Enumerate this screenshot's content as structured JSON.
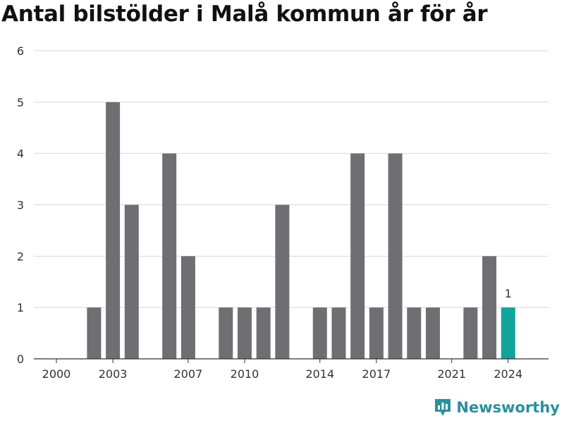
{
  "title": "Antal bilstölder i Malå kommun år för år",
  "brand": {
    "name": "Newsworthy",
    "icon": "bar-chart-logo-icon"
  },
  "colors": {
    "bar": "#6f6f73",
    "highlight": "#12a39a",
    "grid": "#d8d8d8",
    "axis": "#333333",
    "brand": "#2c8f9c"
  },
  "chart_data": {
    "type": "bar",
    "categories": [
      "2000",
      "2001",
      "2002",
      "2003",
      "2004",
      "2005",
      "2006",
      "2007",
      "2008",
      "2009",
      "2010",
      "2011",
      "2012",
      "2013",
      "2014",
      "2015",
      "2016",
      "2017",
      "2018",
      "2019",
      "2020",
      "2021",
      "2022",
      "2023",
      "2024"
    ],
    "values": [
      0,
      0,
      1,
      5,
      3,
      0,
      4,
      2,
      0,
      1,
      1,
      1,
      3,
      0,
      1,
      1,
      4,
      1,
      4,
      1,
      1,
      0,
      1,
      2,
      1
    ],
    "x_tick_labels": [
      "2000",
      "2003",
      "2007",
      "2010",
      "2014",
      "2017",
      "2021",
      "2024"
    ],
    "y_ticks": [
      0,
      1,
      2,
      3,
      4,
      5,
      6
    ],
    "ylim": [
      0,
      6
    ],
    "highlight_category": "2024",
    "highlight_label": "1",
    "grid": true,
    "xlabel": "",
    "ylabel": ""
  }
}
